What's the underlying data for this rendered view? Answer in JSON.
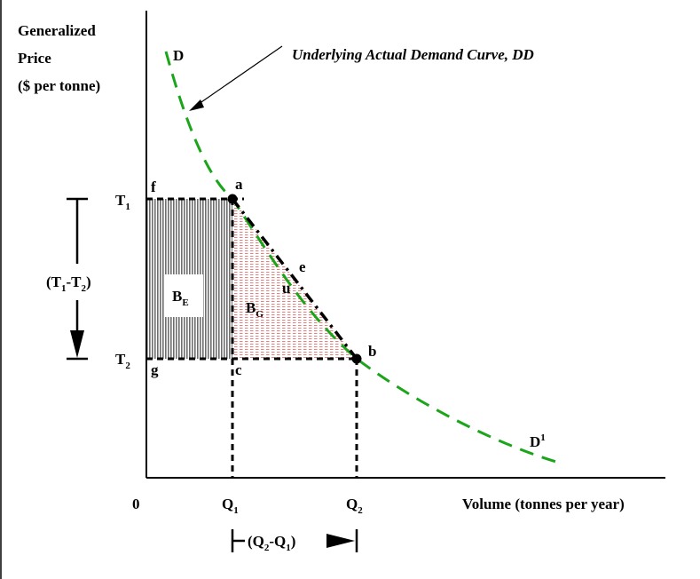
{
  "y_axis_title": {
    "line1": "Generalized",
    "line2": "Price",
    "line3": "($ per tonne)"
  },
  "x_axis_title": "Volume (tonnes per year)",
  "origin_label": "0",
  "curve_annotation": "Underlying Actual Demand Curve, DD",
  "points": {
    "D": "D",
    "D1_base": "D",
    "D1_sup": "1",
    "a": "a",
    "b": "b",
    "c": "c",
    "e": "e",
    "f": "f",
    "g": "g",
    "u": "u"
  },
  "price_levels": {
    "T1_base": "T",
    "T1_sub": "1",
    "T2_base": "T",
    "T2_sub": "2"
  },
  "quantity_levels": {
    "Q1_base": "Q",
    "Q1_sub": "1",
    "Q2_base": "Q",
    "Q2_sub": "2"
  },
  "price_change": {
    "open": "(T",
    "sub1": "1",
    "mid": "-T",
    "sub2": "2",
    "close": ")"
  },
  "quantity_change": {
    "open": "(Q",
    "sub1": "2",
    "mid": "-Q",
    "sub2": "1",
    "close": ")"
  },
  "areas": {
    "BE_base": "B",
    "BE_sub": "E",
    "BG_base": "B",
    "BG_sub": "G"
  },
  "colors": {
    "demand_curve": "#1aa51a",
    "area_BE_hatch": "#6e6e6e",
    "area_BG_hatch": "#e88080",
    "lines": "#000000"
  }
}
